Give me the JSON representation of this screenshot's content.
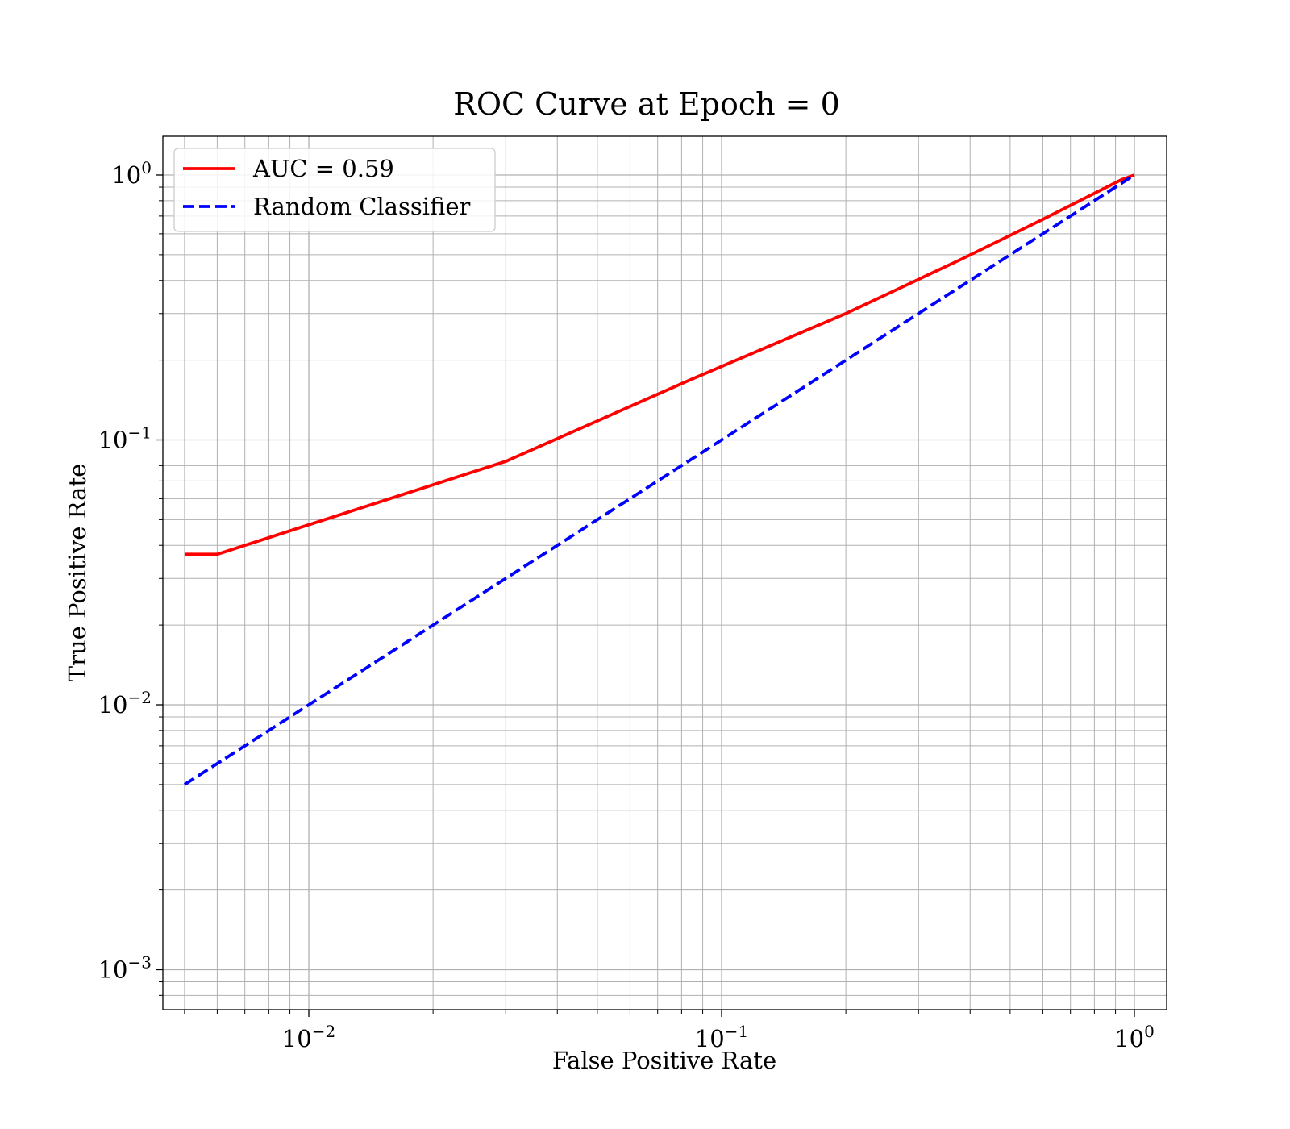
{
  "chart_data": {
    "type": "line",
    "title": "ROC Curve at Epoch = 0",
    "xlabel": "False Positive Rate",
    "ylabel": "True Positive Rate",
    "xscale": "log",
    "yscale": "log",
    "xlim": [
      0.005,
      1.3
    ],
    "ylim": [
      0.00075,
      1.4
    ],
    "grid": true,
    "grid_minor": true,
    "legend_position": "top-left",
    "x_ticks": [
      {
        "value": 0.01,
        "base": "10",
        "exp": "−2"
      },
      {
        "value": 0.1,
        "base": "10",
        "exp": "−1"
      },
      {
        "value": 1,
        "base": "10",
        "exp": "0"
      }
    ],
    "y_ticks": [
      {
        "value": 0.001,
        "base": "10",
        "exp": "−3"
      },
      {
        "value": 0.01,
        "base": "10",
        "exp": "−2"
      },
      {
        "value": 0.1,
        "base": "10",
        "exp": "−1"
      },
      {
        "value": 1,
        "base": "10",
        "exp": "0"
      }
    ],
    "series": [
      {
        "name": "AUC = 0.59",
        "color": "#ff0000",
        "style": "solid",
        "x": [
          0.005,
          0.006,
          0.03,
          0.085,
          0.2,
          0.38,
          0.6,
          0.93,
          1.0
        ],
        "y": [
          0.037,
          0.037,
          0.083,
          0.17,
          0.3,
          0.48,
          0.68,
          0.96,
          1.0
        ]
      },
      {
        "name": "Random Classifier",
        "color": "#0000ff",
        "style": "dashed",
        "x": [
          0.005,
          1.0
        ],
        "y": [
          0.005,
          1.0
        ]
      }
    ]
  }
}
